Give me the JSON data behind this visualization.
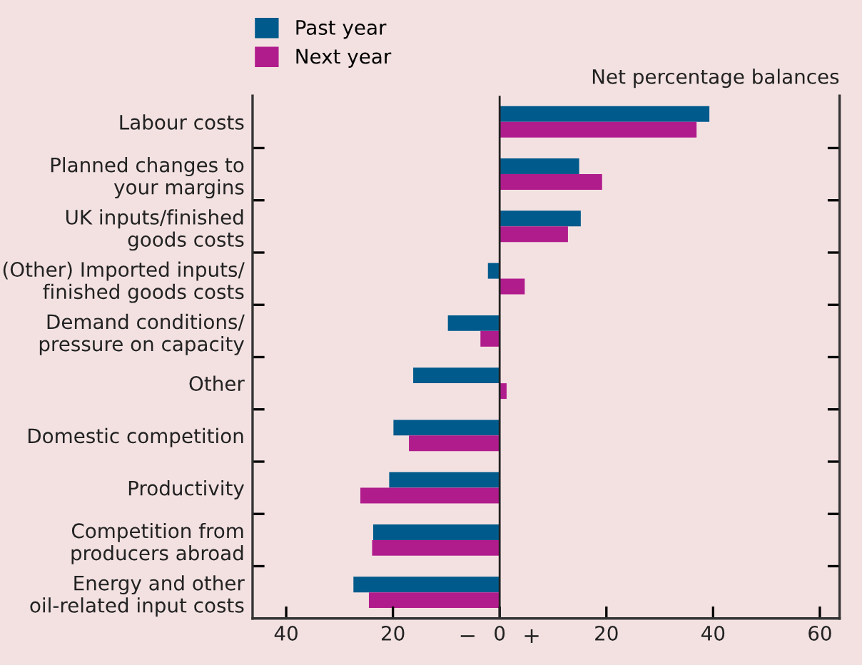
{
  "chart_data": {
    "type": "bar",
    "orientation": "horizontal",
    "categories": [
      "Labour costs",
      "Planned changes to\nyour margins",
      "UK inputs/finished\ngoods costs",
      "(Other) Imported inputs/\nfinished goods costs",
      "Demand conditions/\npressure on capacity",
      "Other",
      "Domestic competition",
      "Productivity",
      "Competition from\nproducers abroad",
      "Energy and other\noil-related input costs"
    ],
    "series": [
      {
        "name": "Past year",
        "color": "#005a8c",
        "values": [
          39.3,
          14.9,
          15.2,
          -2.2,
          -9.7,
          -16.2,
          -19.9,
          -20.7,
          -23.7,
          -27.4
        ]
      },
      {
        "name": "Next year",
        "color": "#b01c8c",
        "values": [
          36.9,
          19.2,
          12.8,
          4.7,
          -3.6,
          1.3,
          -17.0,
          -26.1,
          -23.9,
          -24.5
        ]
      }
    ],
    "xlim": [
      -46.3,
      63.7
    ],
    "xticks": [
      {
        "value": -40,
        "label": "40"
      },
      {
        "value": -20,
        "label": "20"
      },
      0,
      20,
      40,
      60
    ],
    "annotations": [
      "Net percentage balances",
      "−",
      "+"
    ],
    "ref_lines": [
      {
        "axis": "x",
        "value": 0,
        "color": "#222222"
      }
    ],
    "legend": "top left"
  }
}
